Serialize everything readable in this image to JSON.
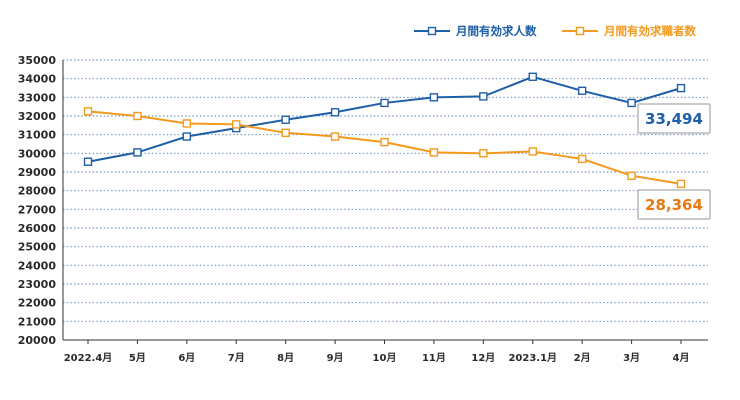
{
  "chart_data": {
    "type": "line",
    "categories": [
      "2022.4月",
      "5月",
      "6月",
      "7月",
      "8月",
      "9月",
      "10月",
      "11月",
      "12月",
      "2023.1月",
      "2月",
      "3月",
      "4月"
    ],
    "series": [
      {
        "name": "月間有効求人数",
        "color": "#1f5ea8",
        "values": [
          29550,
          30050,
          30900,
          31350,
          31800,
          32200,
          32700,
          33000,
          33050,
          34100,
          33350,
          32700,
          33494
        ],
        "label": "33,494"
      },
      {
        "name": "月間有効求職者数",
        "color": "#f39a1e",
        "values": [
          32250,
          32000,
          31600,
          31550,
          31100,
          30900,
          30600,
          30050,
          30000,
          30100,
          29700,
          28800,
          28364
        ],
        "label": "28,364"
      }
    ],
    "ylim": [
      20000,
      35000
    ],
    "yticks": [
      20000,
      21000,
      22000,
      23000,
      24000,
      25000,
      26000,
      27000,
      28000,
      29000,
      30000,
      31000,
      32000,
      33000,
      34000,
      35000
    ],
    "grid": true,
    "legend_position": "top-right",
    "callout_colors": {
      "series1_text": "#1f5ea8",
      "series2_text": "#e87a12",
      "border": "#b9b9b9"
    }
  }
}
